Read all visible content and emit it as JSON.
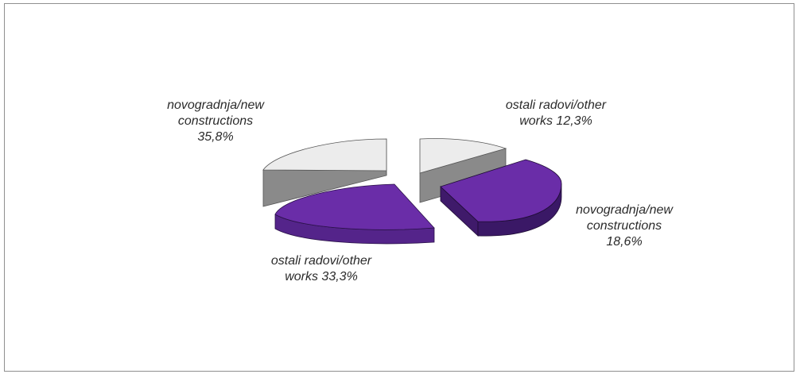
{
  "chart_data": [
    {
      "type": "pie",
      "title": "",
      "slices": [
        {
          "label": "novogradnja/new\nconstructions\n35,8%",
          "value": 35.8,
          "color": "#ececec"
        },
        {
          "label": "ostali radovi/other\nworks 33,3%",
          "value": 33.3,
          "color": "#6a2da8"
        }
      ]
    },
    {
      "type": "pie",
      "title": "",
      "slices": [
        {
          "label": "ostali radovi/other\nworks 12,3%",
          "value": 12.3,
          "color": "#ececec"
        },
        {
          "label": "novogradnja/new\nconstructions\n18,6%",
          "value": 18.6,
          "color": "#6a2da8"
        }
      ]
    }
  ]
}
